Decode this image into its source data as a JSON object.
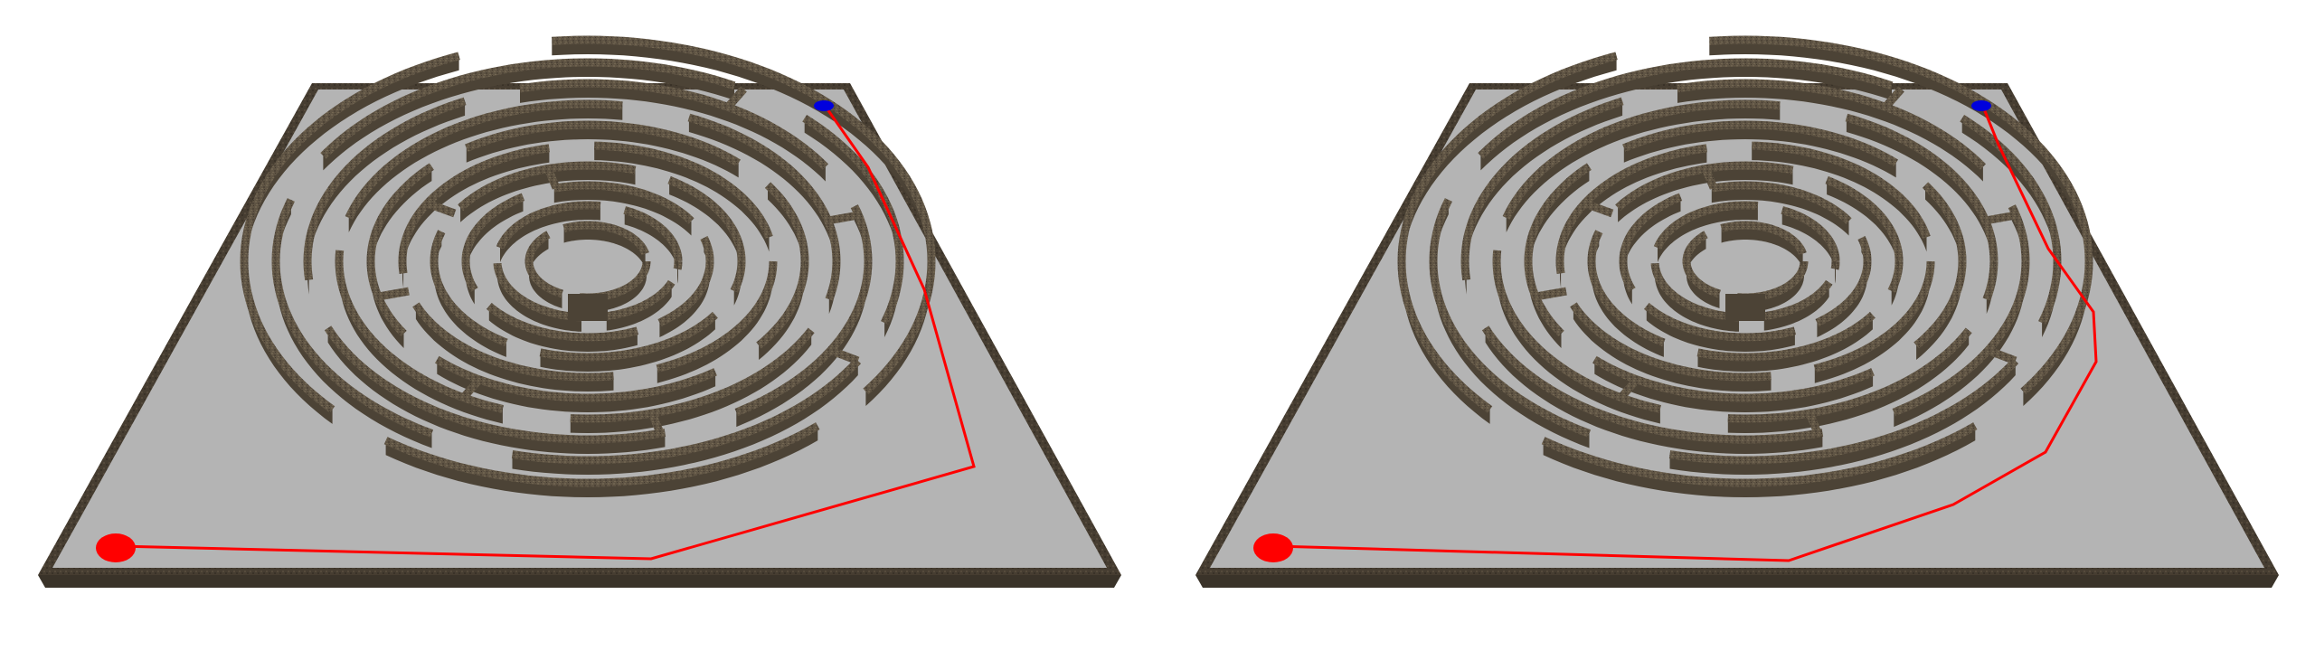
{
  "views": [
    {
      "id": "left",
      "path_color": "#ff0000",
      "start_marker_color": "#ff0000",
      "goal_marker_color": "#0000dd"
    },
    {
      "id": "right",
      "path_color": "#ff0000",
      "start_marker_color": "#ff0000",
      "goal_marker_color": "#0000dd"
    }
  ],
  "colors": {
    "background": "#ffffff",
    "board_surface": "#b4b4b4",
    "wall_top": "#6b5f4f",
    "wall_side": "#4c4336",
    "wall_dark": "#3b342a",
    "board_edge": "#564c3e",
    "board_edge_dark": "#3a3329",
    "path": "#ff0000",
    "start_marker": "#ff0000",
    "goal_marker": "#0000dd"
  }
}
